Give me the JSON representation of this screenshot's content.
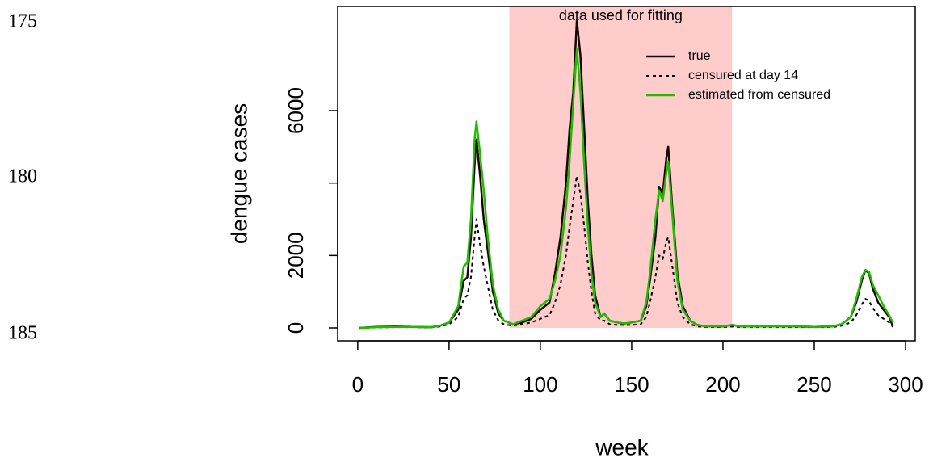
{
  "line_numbers": [
    "175",
    "180",
    "185"
  ],
  "chart_data": {
    "type": "line",
    "xlabel": "week",
    "ylabel": "dengue cases",
    "shade": {
      "from": 83,
      "to": 205,
      "label": "data used for fitting",
      "color": "#ffcccc"
    },
    "xlim": [
      -11,
      305.3
    ],
    "ylim": [
      -357,
      8878
    ],
    "xticks": [
      0,
      50,
      100,
      150,
      200,
      250,
      300
    ],
    "yticks": [
      0,
      2000,
      {
        "value": 4000,
        "label": null
      },
      6000
    ],
    "legend": "topright",
    "x": [
      1,
      10,
      20,
      30,
      40,
      45,
      50,
      55,
      58,
      60,
      62,
      64,
      65,
      67,
      69,
      71,
      74,
      77,
      80,
      85,
      90,
      95,
      100,
      105,
      108,
      111,
      114,
      116,
      118,
      120,
      122,
      124,
      126,
      128,
      130,
      133,
      135,
      138,
      142,
      146,
      150,
      155,
      158,
      160,
      163,
      165,
      167,
      169,
      170,
      172,
      175,
      178,
      182,
      186,
      190,
      200,
      205,
      210,
      220,
      230,
      240,
      250,
      260,
      265,
      270,
      273,
      276,
      278,
      280,
      282,
      285,
      288,
      291,
      293
    ],
    "series": [
      {
        "name": "true",
        "color": "#1a0808",
        "dash": false,
        "values": [
          0,
          30,
          40,
          30,
          20,
          60,
          150,
          500,
          1300,
          1400,
          2500,
          4500,
          5200,
          4200,
          3000,
          2200,
          1000,
          400,
          200,
          100,
          150,
          250,
          500,
          700,
          1500,
          2500,
          4000,
          5500,
          6500,
          8500,
          7500,
          5500,
          3500,
          2000,
          900,
          300,
          400,
          200,
          150,
          120,
          150,
          200,
          600,
          1300,
          2500,
          3900,
          3700,
          4700,
          5000,
          3500,
          1500,
          600,
          200,
          80,
          50,
          40,
          80,
          40,
          40,
          40,
          40,
          30,
          40,
          100,
          300,
          700,
          1300,
          1600,
          1500,
          1100,
          700,
          500,
          300,
          50
        ]
      },
      {
        "name": "censured at day 14",
        "color": "#000000",
        "dash": true,
        "values": [
          0,
          10,
          20,
          20,
          10,
          40,
          100,
          300,
          800,
          900,
          1400,
          2500,
          3000,
          2300,
          1700,
          1200,
          500,
          200,
          100,
          60,
          100,
          150,
          250,
          350,
          700,
          1200,
          2000,
          2800,
          3500,
          4200,
          3700,
          2800,
          1800,
          1000,
          400,
          200,
          200,
          100,
          80,
          80,
          80,
          100,
          300,
          700,
          1400,
          2000,
          1900,
          2400,
          2500,
          1800,
          700,
          300,
          100,
          40,
          30,
          20,
          40,
          20,
          20,
          20,
          20,
          20,
          20,
          60,
          150,
          350,
          650,
          800,
          750,
          550,
          350,
          250,
          150,
          30
        ]
      },
      {
        "name": "estimated from censured",
        "color": "#22bb00",
        "dash": false,
        "values": [
          0,
          20,
          30,
          30,
          20,
          60,
          150,
          600,
          1700,
          1800,
          3000,
          5200,
          5700,
          4800,
          3800,
          2600,
          1200,
          500,
          200,
          100,
          200,
          300,
          600,
          800,
          1300,
          2000,
          3300,
          4600,
          6200,
          7700,
          6500,
          4500,
          2800,
          1500,
          700,
          300,
          400,
          200,
          150,
          120,
          150,
          200,
          700,
          1500,
          3000,
          3800,
          3500,
          4300,
          4600,
          3300,
          1300,
          500,
          200,
          80,
          50,
          40,
          80,
          40,
          40,
          40,
          40,
          30,
          40,
          100,
          300,
          800,
          1400,
          1600,
          1550,
          1200,
          900,
          600,
          350,
          150
        ]
      }
    ]
  }
}
